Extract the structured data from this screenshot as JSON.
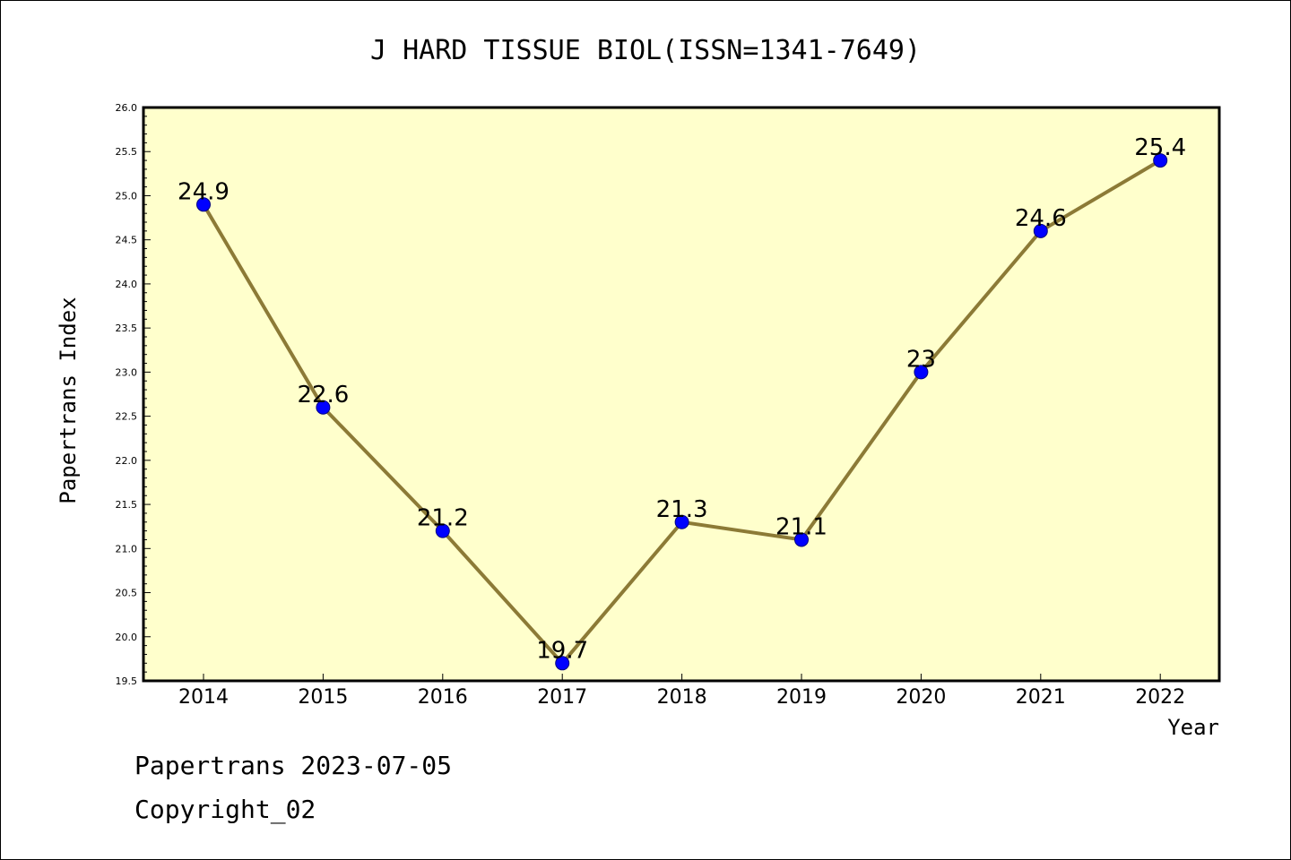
{
  "footer": {
    "line1": "Papertrans 2023-07-05",
    "line2": "Copyright_02"
  },
  "colors": {
    "plot_background": "#ffffcc",
    "line": "#8c7a36",
    "marker": "#0000ff",
    "marker_edge": "#000080",
    "axis": "#000000"
  },
  "chart_data": {
    "type": "line",
    "title": "J HARD TISSUE BIOL(ISSN=1341-7649)",
    "xlabel": "Year",
    "ylabel": "Papertrans Index",
    "categories": [
      "2014",
      "2015",
      "2016",
      "2017",
      "2018",
      "2019",
      "2020",
      "2021",
      "2022"
    ],
    "values": [
      24.9,
      22.6,
      21.2,
      19.7,
      21.3,
      21.1,
      23,
      24.6,
      25.4
    ],
    "data_labels": [
      "24.9",
      "22.6",
      "21.2",
      "19.7",
      "21.3",
      "21.1",
      "23",
      "24.6",
      "25.4"
    ],
    "ylim": [
      19.5,
      26.0
    ],
    "yticks": [
      "19.5",
      "20.0",
      "20.5",
      "21.0",
      "21.5",
      "22.0",
      "22.5",
      "23.0",
      "23.5",
      "24.0",
      "24.5",
      "25.0",
      "25.5",
      "26.0"
    ],
    "grid": false,
    "legend": "none"
  }
}
